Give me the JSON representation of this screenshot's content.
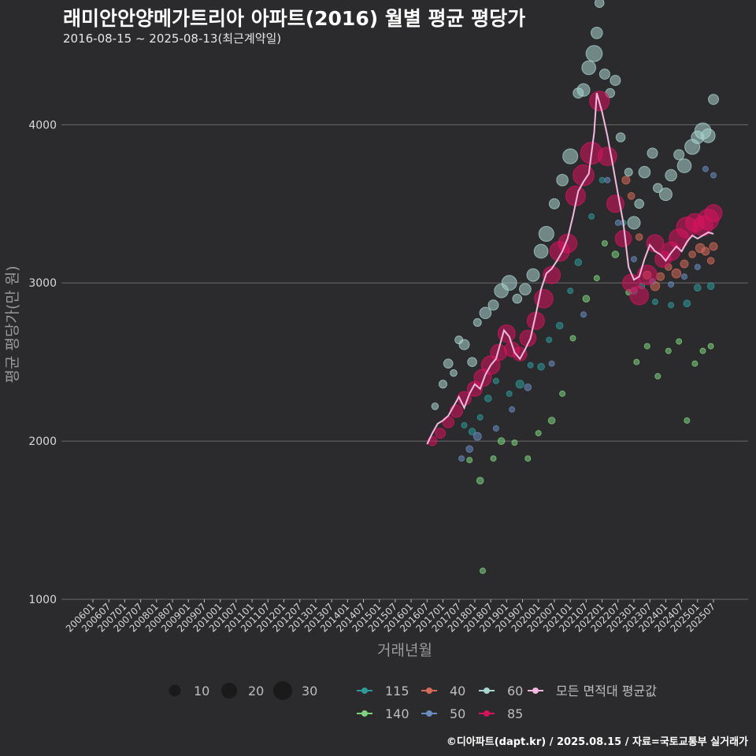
{
  "header": {
    "title": "래미안안양메가트리아 아파트(2016) 월별 평균 평당가",
    "subtitle": "2016-08-15 ~ 2025-08-13(최근계약일)"
  },
  "caption": "©디아파트(dapt.kr) / 2025.08.15 / 자료=국토교통부 실거래가",
  "chart_data": {
    "type": "scatter",
    "xlabel": "거래년월",
    "ylabel": "평균 평당가(만 원)",
    "ylim": [
      1000,
      4400
    ],
    "yticks": [
      1000,
      2000,
      3000,
      4000
    ],
    "x_tick_labels": [
      "200601",
      "200607",
      "200701",
      "200707",
      "200801",
      "200807",
      "200901",
      "200907",
      "201001",
      "201007",
      "201101",
      "201107",
      "201201",
      "201207",
      "201301",
      "201307",
      "201401",
      "201407",
      "201501",
      "201507",
      "201601",
      "201607",
      "201701",
      "201707",
      "201801",
      "201807",
      "201901",
      "201907",
      "202001",
      "202007",
      "202101",
      "202107",
      "202201",
      "202207",
      "202301",
      "202307",
      "202401",
      "202407",
      "202501",
      "202507"
    ],
    "grid": "horizontal",
    "size_legend": {
      "values": [
        10,
        20,
        30
      ]
    },
    "series": [
      {
        "name": "115",
        "color": "#2e9a9a",
        "points": [
          [
            "2017-09",
            2100,
            2
          ],
          [
            "2017-12",
            2060,
            3
          ],
          [
            "2018-03",
            2150,
            2
          ],
          [
            "2018-06",
            2270,
            3
          ],
          [
            "2018-09",
            2380,
            2
          ],
          [
            "2019-02",
            2300,
            2
          ],
          [
            "2019-06",
            2360,
            4
          ],
          [
            "2019-10",
            2480,
            2
          ],
          [
            "2020-02",
            2470,
            3
          ],
          [
            "2020-05",
            2640,
            2
          ],
          [
            "2020-09",
            2730,
            3
          ],
          [
            "2021-01",
            2950,
            2
          ],
          [
            "2021-04",
            3130,
            3
          ],
          [
            "2021-09",
            3420,
            2
          ],
          [
            "2022-01",
            3650,
            2
          ],
          [
            "2022-09",
            3380,
            2
          ],
          [
            "2023-01",
            2950,
            3
          ],
          [
            "2023-04",
            2980,
            2
          ],
          [
            "2023-09",
            2880,
            2
          ],
          [
            "2024-03",
            2860,
            2
          ],
          [
            "2024-09",
            2870,
            3
          ],
          [
            "2025-01",
            2970,
            3
          ],
          [
            "2025-06",
            2980,
            3
          ]
        ]
      },
      {
        "name": "140",
        "color": "#7ed37e",
        "points": [
          [
            "2017-11",
            1880,
            2
          ],
          [
            "2018-03",
            1750,
            3
          ],
          [
            "2018-04",
            1180,
            2
          ],
          [
            "2018-08",
            1890,
            2
          ],
          [
            "2018-11",
            2000,
            3
          ],
          [
            "2019-04",
            1990,
            2
          ],
          [
            "2019-09",
            1890,
            2
          ],
          [
            "2020-01",
            2050,
            2
          ],
          [
            "2020-06",
            2130,
            3
          ],
          [
            "2020-10",
            2300,
            2
          ],
          [
            "2021-02",
            2650,
            2
          ],
          [
            "2021-07",
            2900,
            3
          ],
          [
            "2021-11",
            3030,
            2
          ],
          [
            "2022-02",
            3250,
            2
          ],
          [
            "2022-06",
            3180,
            3
          ],
          [
            "2022-11",
            2940,
            2
          ],
          [
            "2023-02",
            2500,
            2
          ],
          [
            "2023-06",
            2600,
            2
          ],
          [
            "2023-10",
            2410,
            2
          ],
          [
            "2024-02",
            2570,
            2
          ],
          [
            "2024-06",
            2630,
            2
          ],
          [
            "2024-09",
            2130,
            2
          ],
          [
            "2024-12",
            2490,
            2
          ],
          [
            "2025-03",
            2570,
            2
          ],
          [
            "2025-06",
            2600,
            2
          ]
        ]
      },
      {
        "name": "40",
        "color": "#d66a58",
        "points": [
          [
            "2022-10",
            3650,
            4
          ],
          [
            "2022-12",
            3550,
            3
          ],
          [
            "2023-03",
            3290,
            3
          ],
          [
            "2023-06",
            3050,
            4
          ],
          [
            "2023-09",
            2980,
            5
          ],
          [
            "2023-11",
            3040,
            4
          ],
          [
            "2024-02",
            3100,
            3
          ],
          [
            "2024-05",
            3060,
            5
          ],
          [
            "2024-08",
            3120,
            4
          ],
          [
            "2024-11",
            3180,
            3
          ],
          [
            "2025-02",
            3220,
            5
          ],
          [
            "2025-04",
            3200,
            4
          ],
          [
            "2025-06",
            3140,
            3
          ],
          [
            "2025-07",
            3230,
            4
          ]
        ]
      },
      {
        "name": "50",
        "color": "#6a8cc0",
        "points": [
          [
            "2017-08",
            1890,
            2
          ],
          [
            "2017-11",
            1950,
            3
          ],
          [
            "2018-02",
            2030,
            4
          ],
          [
            "2018-09",
            2080,
            2
          ],
          [
            "2019-03",
            2200,
            2
          ],
          [
            "2019-09",
            2340,
            3
          ],
          [
            "2020-06",
            2490,
            2
          ],
          [
            "2021-06",
            2800,
            2
          ],
          [
            "2022-03",
            3650,
            2
          ],
          [
            "2022-07",
            3380,
            2
          ],
          [
            "2023-01",
            3150,
            2
          ],
          [
            "2023-08",
            3010,
            2
          ],
          [
            "2024-03",
            2990,
            2
          ],
          [
            "2024-08",
            3040,
            2
          ],
          [
            "2025-01",
            3100,
            2
          ],
          [
            "2025-04",
            3720,
            2
          ],
          [
            "2025-07",
            3680,
            2
          ]
        ]
      },
      {
        "name": "60",
        "color": "#a9d4d0",
        "points": [
          [
            "2016-10",
            2220,
            3
          ],
          [
            "2017-01",
            2360,
            4
          ],
          [
            "2017-03",
            2490,
            5
          ],
          [
            "2017-05",
            2430,
            3
          ],
          [
            "2017-07",
            2640,
            4
          ],
          [
            "2017-09",
            2610,
            6
          ],
          [
            "2017-12",
            2500,
            5
          ],
          [
            "2018-02",
            2750,
            4
          ],
          [
            "2018-05",
            2810,
            7
          ],
          [
            "2018-08",
            2860,
            6
          ],
          [
            "2018-11",
            2950,
            9
          ],
          [
            "2019-02",
            3000,
            10
          ],
          [
            "2019-05",
            2900,
            5
          ],
          [
            "2019-08",
            2960,
            7
          ],
          [
            "2019-11",
            3050,
            8
          ],
          [
            "2020-02",
            3200,
            9
          ],
          [
            "2020-04",
            3310,
            10
          ],
          [
            "2020-07",
            3500,
            6
          ],
          [
            "2020-10",
            3650,
            7
          ],
          [
            "2021-01",
            3800,
            10
          ],
          [
            "2021-04",
            4200,
            6
          ],
          [
            "2021-06",
            4220,
            8
          ],
          [
            "2021-08",
            4360,
            9
          ],
          [
            "2021-10",
            4450,
            11
          ],
          [
            "2021-11",
            4580,
            7
          ],
          [
            "2021-12",
            4770,
            5
          ],
          [
            "2022-02",
            4320,
            6
          ],
          [
            "2022-04",
            4200,
            5
          ],
          [
            "2022-06",
            4280,
            6
          ],
          [
            "2022-08",
            3920,
            5
          ],
          [
            "2022-11",
            3700,
            4
          ],
          [
            "2023-01",
            3380,
            8
          ],
          [
            "2023-03",
            3500,
            5
          ],
          [
            "2023-05",
            3700,
            7
          ],
          [
            "2023-08",
            3820,
            6
          ],
          [
            "2023-10",
            3600,
            5
          ],
          [
            "2024-01",
            3560,
            8
          ],
          [
            "2024-03",
            3680,
            7
          ],
          [
            "2024-06",
            3810,
            6
          ],
          [
            "2024-08",
            3740,
            9
          ],
          [
            "2024-11",
            3860,
            10
          ],
          [
            "2025-01",
            3920,
            8
          ],
          [
            "2025-03",
            3960,
            11
          ],
          [
            "2025-05",
            3930,
            9
          ],
          [
            "2025-07",
            4160,
            6
          ]
        ]
      },
      {
        "name": "85",
        "color": "#d8135e",
        "points": [
          [
            "2016-09",
            2000,
            5
          ],
          [
            "2016-12",
            2050,
            6
          ],
          [
            "2017-03",
            2120,
            7
          ],
          [
            "2017-06",
            2190,
            8
          ],
          [
            "2017-09",
            2270,
            9
          ],
          [
            "2018-01",
            2330,
            10
          ],
          [
            "2018-04",
            2400,
            12
          ],
          [
            "2018-07",
            2480,
            13
          ],
          [
            "2018-10",
            2560,
            11
          ],
          [
            "2019-01",
            2680,
            12
          ],
          [
            "2019-03",
            2580,
            10
          ],
          [
            "2019-06",
            2550,
            9
          ],
          [
            "2019-09",
            2650,
            11
          ],
          [
            "2019-12",
            2760,
            12
          ],
          [
            "2020-03",
            2900,
            13
          ],
          [
            "2020-06",
            3050,
            12
          ],
          [
            "2020-09",
            3200,
            14
          ],
          [
            "2020-12",
            3250,
            13
          ],
          [
            "2021-03",
            3550,
            14
          ],
          [
            "2021-06",
            3680,
            15
          ],
          [
            "2021-09",
            3820,
            16
          ],
          [
            "2021-12",
            4150,
            14
          ],
          [
            "2022-03",
            3800,
            13
          ],
          [
            "2022-06",
            3500,
            12
          ],
          [
            "2022-09",
            3280,
            11
          ],
          [
            "2022-12",
            3000,
            12
          ],
          [
            "2023-03",
            2920,
            13
          ],
          [
            "2023-06",
            3050,
            14
          ],
          [
            "2023-09",
            3250,
            12
          ],
          [
            "2023-12",
            3150,
            11
          ],
          [
            "2024-03",
            3200,
            13
          ],
          [
            "2024-06",
            3280,
            14
          ],
          [
            "2024-09",
            3350,
            15
          ],
          [
            "2024-12",
            3380,
            13
          ],
          [
            "2025-03",
            3360,
            14
          ],
          [
            "2025-05",
            3400,
            15
          ],
          [
            "2025-07",
            3440,
            12
          ]
        ]
      },
      {
        "name": "모든 면적대 평균값",
        "color": "#f2b8e0",
        "style": "line",
        "line": [
          [
            "2016-07",
            1980
          ],
          [
            "2016-09",
            2050
          ],
          [
            "2016-11",
            2110
          ],
          [
            "2017-01",
            2130
          ],
          [
            "2017-03",
            2160
          ],
          [
            "2017-05",
            2220
          ],
          [
            "2017-07",
            2280
          ],
          [
            "2017-09",
            2210
          ],
          [
            "2017-11",
            2300
          ],
          [
            "2018-01",
            2360
          ],
          [
            "2018-03",
            2330
          ],
          [
            "2018-05",
            2420
          ],
          [
            "2018-07",
            2480
          ],
          [
            "2018-09",
            2520
          ],
          [
            "2018-11",
            2640
          ],
          [
            "2018-12",
            2700
          ],
          [
            "2019-02",
            2660
          ],
          [
            "2019-04",
            2560
          ],
          [
            "2019-06",
            2520
          ],
          [
            "2019-08",
            2580
          ],
          [
            "2019-10",
            2650
          ],
          [
            "2019-12",
            2800
          ],
          [
            "2020-02",
            2960
          ],
          [
            "2020-04",
            3060
          ],
          [
            "2020-06",
            3090
          ],
          [
            "2020-08",
            3140
          ],
          [
            "2020-10",
            3200
          ],
          [
            "2020-12",
            3280
          ],
          [
            "2021-02",
            3420
          ],
          [
            "2021-04",
            3580
          ],
          [
            "2021-06",
            3640
          ],
          [
            "2021-08",
            3690
          ],
          [
            "2021-10",
            3950
          ],
          [
            "2021-11",
            4200
          ],
          [
            "2022-01",
            4080
          ],
          [
            "2022-03",
            3930
          ],
          [
            "2022-05",
            3750
          ],
          [
            "2022-07",
            3560
          ],
          [
            "2022-09",
            3380
          ],
          [
            "2022-11",
            3100
          ],
          [
            "2023-01",
            3020
          ],
          [
            "2023-03",
            3040
          ],
          [
            "2023-05",
            3150
          ],
          [
            "2023-07",
            3240
          ],
          [
            "2023-09",
            3200
          ],
          [
            "2023-11",
            3180
          ],
          [
            "2024-01",
            3140
          ],
          [
            "2024-03",
            3190
          ],
          [
            "2024-05",
            3230
          ],
          [
            "2024-07",
            3200
          ],
          [
            "2024-09",
            3260
          ],
          [
            "2024-11",
            3300
          ],
          [
            "2025-01",
            3280
          ],
          [
            "2025-03",
            3300
          ],
          [
            "2025-05",
            3320
          ],
          [
            "2025-07",
            3310
          ]
        ]
      }
    ]
  }
}
